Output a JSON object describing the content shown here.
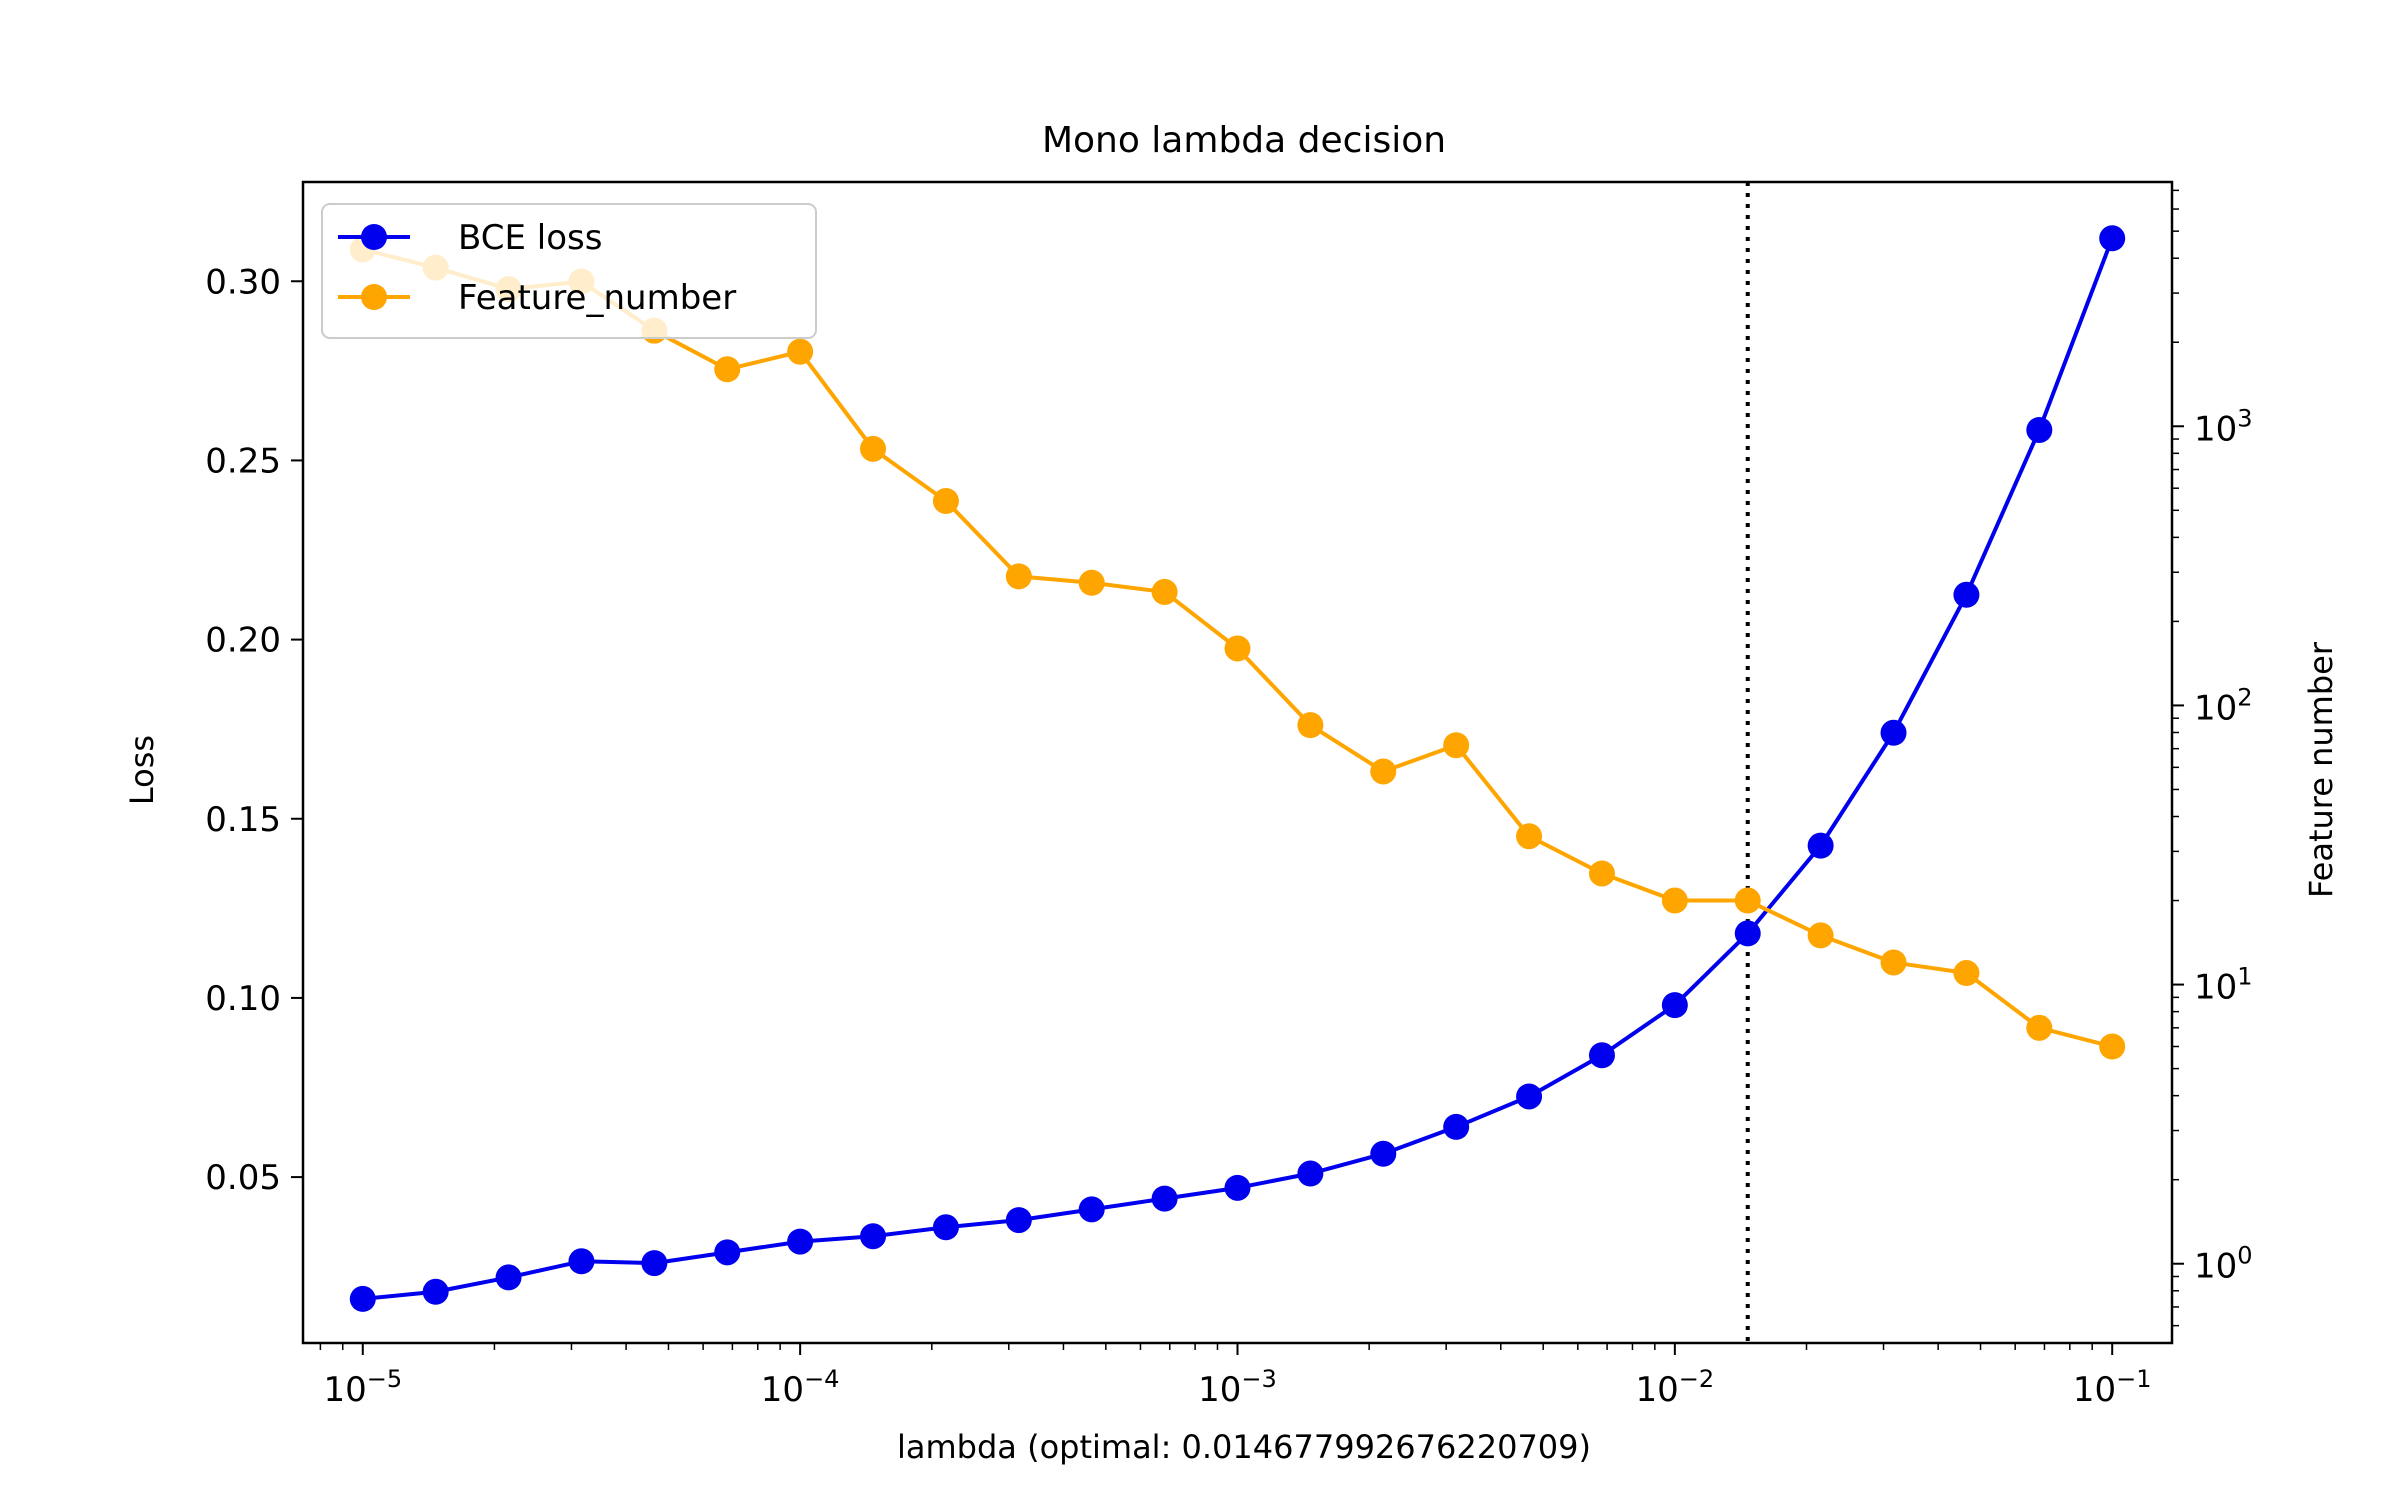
{
  "chart_data": {
    "type": "line",
    "title": "Mono lambda decision",
    "xlabel": "lambda (optimal: 0.014677992676220709)",
    "ylabel_left": "Loss",
    "ylabel_right": "Feature number",
    "x_scale": "log",
    "y_right_scale": "log",
    "xlim": [
      7.3e-06,
      0.137
    ],
    "ylim_left": [
      0.0037,
      0.3277
    ],
    "ylim_right": [
      0.52,
      7500
    ],
    "x_ticks": [
      {
        "value": 1e-05,
        "base": "10",
        "exp": "−5"
      },
      {
        "value": 0.0001,
        "base": "10",
        "exp": "−4"
      },
      {
        "value": 0.001,
        "base": "10",
        "exp": "−3"
      },
      {
        "value": 0.01,
        "base": "10",
        "exp": "−2"
      },
      {
        "value": 0.1,
        "base": "10",
        "exp": "−1"
      }
    ],
    "y_left_ticks": [
      "0.05",
      "0.10",
      "0.15",
      "0.20",
      "0.25",
      "0.30"
    ],
    "y_right_ticks": [
      {
        "value": 1,
        "base": "10",
        "exp": "0"
      },
      {
        "value": 10,
        "base": "10",
        "exp": "1"
      },
      {
        "value": 100,
        "base": "10",
        "exp": "2"
      },
      {
        "value": 1000,
        "base": "10",
        "exp": "3"
      }
    ],
    "x": [
      1e-05,
      1.4678e-05,
      2.1544e-05,
      3.1623e-05,
      4.6416e-05,
      6.8129e-05,
      0.0001,
      0.00014678,
      0.00021544,
      0.00031623,
      0.00046416,
      0.00068129,
      0.001,
      0.0014678,
      0.0021544,
      0.0031623,
      0.0046416,
      0.0068129,
      0.01,
      0.014678,
      0.021544,
      0.031623,
      0.046416,
      0.068129,
      0.1
    ],
    "series": [
      {
        "name": "BCE loss",
        "axis": "left",
        "color": "#0000ee",
        "values": [
          0.016,
          0.018,
          0.022,
          0.0265,
          0.026,
          0.029,
          0.032,
          0.0335,
          0.036,
          0.038,
          0.041,
          0.044,
          0.047,
          0.051,
          0.0565,
          0.064,
          0.0725,
          0.084,
          0.098,
          0.118,
          0.1425,
          0.174,
          0.2125,
          0.2585,
          0.312
        ]
      },
      {
        "name": "Feature_number",
        "axis": "right",
        "color": "#ffa500",
        "values": [
          4300,
          3700,
          3100,
          3300,
          2200,
          1600,
          1850,
          830,
          540,
          290,
          275,
          255,
          160,
          85,
          58,
          72,
          34,
          25,
          20,
          20,
          15,
          12,
          11,
          7,
          6
        ]
      }
    ],
    "vline": {
      "x": 0.014677992676220709,
      "style": "dotted",
      "color": "#000000"
    },
    "legend": {
      "placement": "top-left"
    }
  }
}
